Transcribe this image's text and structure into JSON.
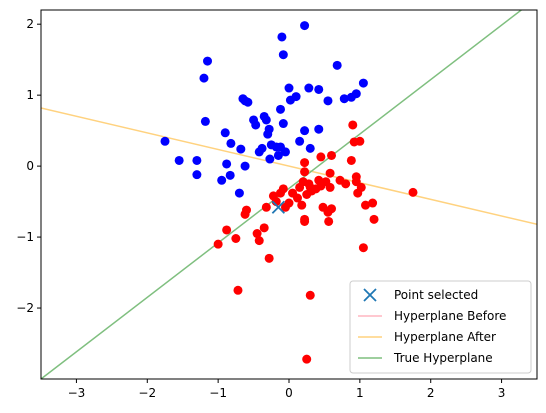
{
  "chart_data": {
    "type": "scatter",
    "title": "",
    "xlabel": "",
    "ylabel": "",
    "xlim": [
      -3.5,
      3.5
    ],
    "ylim": [
      -3.0,
      2.2
    ],
    "xticks": [
      -3,
      -2,
      -1,
      0,
      1,
      2,
      3
    ],
    "yticks": [
      -2,
      -1,
      0,
      1,
      2
    ],
    "xtick_labels": [
      "−3",
      "−2",
      "−1",
      "0",
      "1",
      "2",
      "3"
    ],
    "ytick_labels": [
      "−2",
      "−1",
      "0",
      "1",
      "2"
    ],
    "grid": false,
    "legend_position": "bottom-right",
    "series": [
      {
        "color": "#0000ff",
        "points": [
          [
            -1.75,
            0.35
          ],
          [
            -1.55,
            0.08
          ],
          [
            -1.3,
            -0.12
          ],
          [
            -1.3,
            0.08
          ],
          [
            -1.2,
            1.24
          ],
          [
            -1.15,
            1.48
          ],
          [
            -1.18,
            0.63
          ],
          [
            -0.95,
            -0.2
          ],
          [
            -0.9,
            0.47
          ],
          [
            -0.88,
            0.03
          ],
          [
            -0.82,
            0.32
          ],
          [
            -0.83,
            -0.13
          ],
          [
            -0.7,
            -0.38
          ],
          [
            -0.68,
            0.24
          ],
          [
            -0.65,
            0.95
          ],
          [
            -0.62,
            0.92
          ],
          [
            -0.58,
            0.9
          ],
          [
            -0.62,
            0.0
          ],
          [
            -0.5,
            0.65
          ],
          [
            -0.47,
            0.58
          ],
          [
            -0.42,
            0.2
          ],
          [
            -0.38,
            0.25
          ],
          [
            -0.35,
            0.7
          ],
          [
            -0.32,
            0.65
          ],
          [
            -0.3,
            0.45
          ],
          [
            -0.28,
            0.52
          ],
          [
            -0.27,
            0.1
          ],
          [
            -0.25,
            0.3
          ],
          [
            -0.18,
            0.27
          ],
          [
            -0.15,
            0.15
          ],
          [
            -0.12,
            0.27
          ],
          [
            -0.12,
            0.8
          ],
          [
            -0.1,
            1.82
          ],
          [
            -0.08,
            1.57
          ],
          [
            -0.08,
            0.6
          ],
          [
            -0.05,
            0.2
          ],
          [
            0.0,
            1.1
          ],
          [
            0.02,
            0.93
          ],
          [
            0.1,
            0.98
          ],
          [
            0.15,
            0.35
          ],
          [
            0.22,
            1.98
          ],
          [
            0.22,
            0.5
          ],
          [
            0.28,
            1.1
          ],
          [
            0.3,
            0.25
          ],
          [
            0.42,
            1.08
          ],
          [
            0.42,
            0.52
          ],
          [
            0.55,
            0.92
          ],
          [
            0.68,
            1.42
          ],
          [
            0.78,
            0.95
          ],
          [
            0.88,
            0.97
          ],
          [
            0.95,
            1.02
          ],
          [
            1.05,
            1.17
          ]
        ]
      },
      {
        "color": "#ff0000",
        "points": [
          [
            -1.0,
            -1.1
          ],
          [
            -0.88,
            -0.9
          ],
          [
            -0.75,
            -1.02
          ],
          [
            -0.72,
            -1.75
          ],
          [
            -0.6,
            -0.62
          ],
          [
            -0.62,
            -0.68
          ],
          [
            -0.45,
            -0.95
          ],
          [
            -0.42,
            -1.05
          ],
          [
            -0.35,
            -0.87
          ],
          [
            -0.32,
            -0.58
          ],
          [
            -0.28,
            -1.3
          ],
          [
            -0.22,
            -0.42
          ],
          [
            -0.18,
            -0.5
          ],
          [
            -0.12,
            -0.38
          ],
          [
            -0.08,
            -0.32
          ],
          [
            -0.05,
            -0.58
          ],
          [
            0.0,
            -0.52
          ],
          [
            0.05,
            -0.38
          ],
          [
            0.12,
            -0.45
          ],
          [
            0.15,
            -0.3
          ],
          [
            0.18,
            -0.55
          ],
          [
            0.2,
            -0.22
          ],
          [
            0.22,
            -0.08
          ],
          [
            0.22,
            0.05
          ],
          [
            0.22,
            -0.75
          ],
          [
            0.22,
            -0.78
          ],
          [
            0.25,
            -2.72
          ],
          [
            0.25,
            -0.4
          ],
          [
            0.28,
            -0.25
          ],
          [
            0.3,
            -0.3
          ],
          [
            0.3,
            -1.82
          ],
          [
            0.32,
            -0.35
          ],
          [
            0.38,
            -0.32
          ],
          [
            0.42,
            -0.2
          ],
          [
            0.45,
            0.13
          ],
          [
            0.45,
            -0.28
          ],
          [
            0.48,
            -0.58
          ],
          [
            0.52,
            -0.22
          ],
          [
            0.55,
            -0.65
          ],
          [
            0.56,
            -0.78
          ],
          [
            0.58,
            -0.3
          ],
          [
            0.58,
            -0.1
          ],
          [
            0.6,
            0.15
          ],
          [
            0.6,
            -0.6
          ],
          [
            0.72,
            -0.2
          ],
          [
            0.8,
            -0.25
          ],
          [
            0.88,
            0.08
          ],
          [
            0.9,
            0.58
          ],
          [
            0.92,
            0.34
          ],
          [
            0.95,
            -0.15
          ],
          [
            0.95,
            -0.22
          ],
          [
            0.97,
            -0.38
          ],
          [
            1.0,
            0.35
          ],
          [
            1.02,
            -0.3
          ],
          [
            1.05,
            -1.15
          ],
          [
            1.08,
            -0.55
          ],
          [
            1.18,
            -0.52
          ],
          [
            1.2,
            -0.75
          ],
          [
            1.75,
            -0.37
          ]
        ]
      }
    ],
    "selected_point": {
      "x": -0.15,
      "y": -0.58,
      "color": "#1f77b4",
      "marker": "x"
    },
    "lines": [
      {
        "name": "Hyperplane Before",
        "color": "#ffb6c1",
        "x": [
          -3.5,
          3.5
        ],
        "y": [
          0.82,
          -0.82
        ],
        "visible": false
      },
      {
        "name": "Hyperplane After",
        "color": "#ffd27f",
        "x": [
          -3.5,
          3.5
        ],
        "y": [
          0.82,
          -0.82
        ],
        "visible": true
      },
      {
        "name": "True Hyperplane",
        "color": "#7fbf7f",
        "x": [
          -3.5,
          3.5
        ],
        "y": [
          -3.0,
          2.37
        ],
        "visible": true
      }
    ],
    "legend": [
      {
        "label": "Point selected",
        "kind": "marker",
        "color": "#1f77b4"
      },
      {
        "label": "Hyperplane Before",
        "kind": "line",
        "color": "#ffb6c1"
      },
      {
        "label": "Hyperplane After",
        "kind": "line",
        "color": "#ffd27f"
      },
      {
        "label": "True Hyperplane",
        "kind": "line",
        "color": "#7fbf7f"
      }
    ]
  }
}
